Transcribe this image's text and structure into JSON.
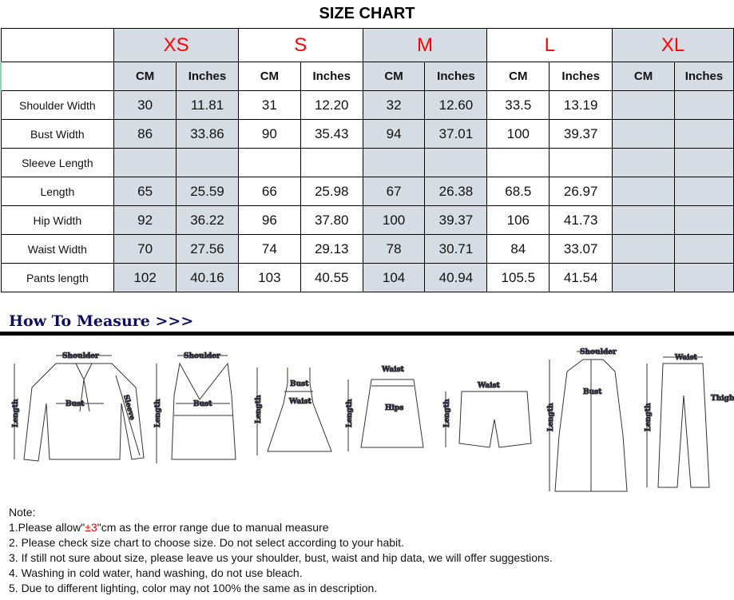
{
  "title": "SIZE CHART",
  "sizes": [
    "XS",
    "S",
    "M",
    "L",
    "XL"
  ],
  "units": {
    "cm": "CM",
    "in": "Inches"
  },
  "rows": [
    {
      "label": "Shoulder Width",
      "values": [
        "30",
        "11.81",
        "31",
        "12.20",
        "32",
        "12.60",
        "33.5",
        "13.19",
        "",
        ""
      ]
    },
    {
      "label": "Bust Width",
      "values": [
        "86",
        "33.86",
        "90",
        "35.43",
        "94",
        "37.01",
        "100",
        "39.37",
        "",
        ""
      ]
    },
    {
      "label": "Sleeve Length",
      "values": [
        "",
        "",
        "",
        "",
        "",
        "",
        "",
        "",
        "",
        ""
      ]
    },
    {
      "label": "Length",
      "values": [
        "65",
        "25.59",
        "66",
        "25.98",
        "67",
        "26.38",
        "68.5",
        "26.97",
        "",
        ""
      ]
    },
    {
      "label": "Hip Width",
      "values": [
        "92",
        "36.22",
        "96",
        "37.80",
        "100",
        "39.37",
        "106",
        "41.73",
        "",
        ""
      ]
    },
    {
      "label": "Waist Width",
      "values": [
        "70",
        "27.56",
        "74",
        "29.13",
        "78",
        "30.71",
        "84",
        "33.07",
        "",
        ""
      ]
    },
    {
      "label": "Pants length",
      "values": [
        "102",
        "40.16",
        "103",
        "40.55",
        "104",
        "40.94",
        "105.5",
        "41.54",
        "",
        ""
      ]
    }
  ],
  "how_to_measure": "How To Measure >>>",
  "diagram_labels": {
    "shoulder": "Shoulder",
    "length": "Length",
    "bust": "Bust",
    "sleeve": "Sleeve",
    "waist": "Waist",
    "hips": "Hips",
    "thigh": "Thigh"
  },
  "notes": {
    "heading": "Note:",
    "n1_pre": "1.Please allow\"",
    "n1_red": "±3",
    "n1_post": "\"cm as the error range due to manual measure",
    "n2": "2. Please check size chart to choose size. Do not select according to your habit.",
    "n3": "3. If still not sure about size, please leave us your shoulder, bust, waist and hip data, we will offer suggestions.",
    "n4": "4. Washing in cold water, hand washing, do not use bleach.",
    "n5": "5. Due to different lighting, color may not 100% the same as in description."
  },
  "colors": {
    "shaded": "#d6dce4",
    "size_text": "#ff0000",
    "howto": "#10105a"
  }
}
